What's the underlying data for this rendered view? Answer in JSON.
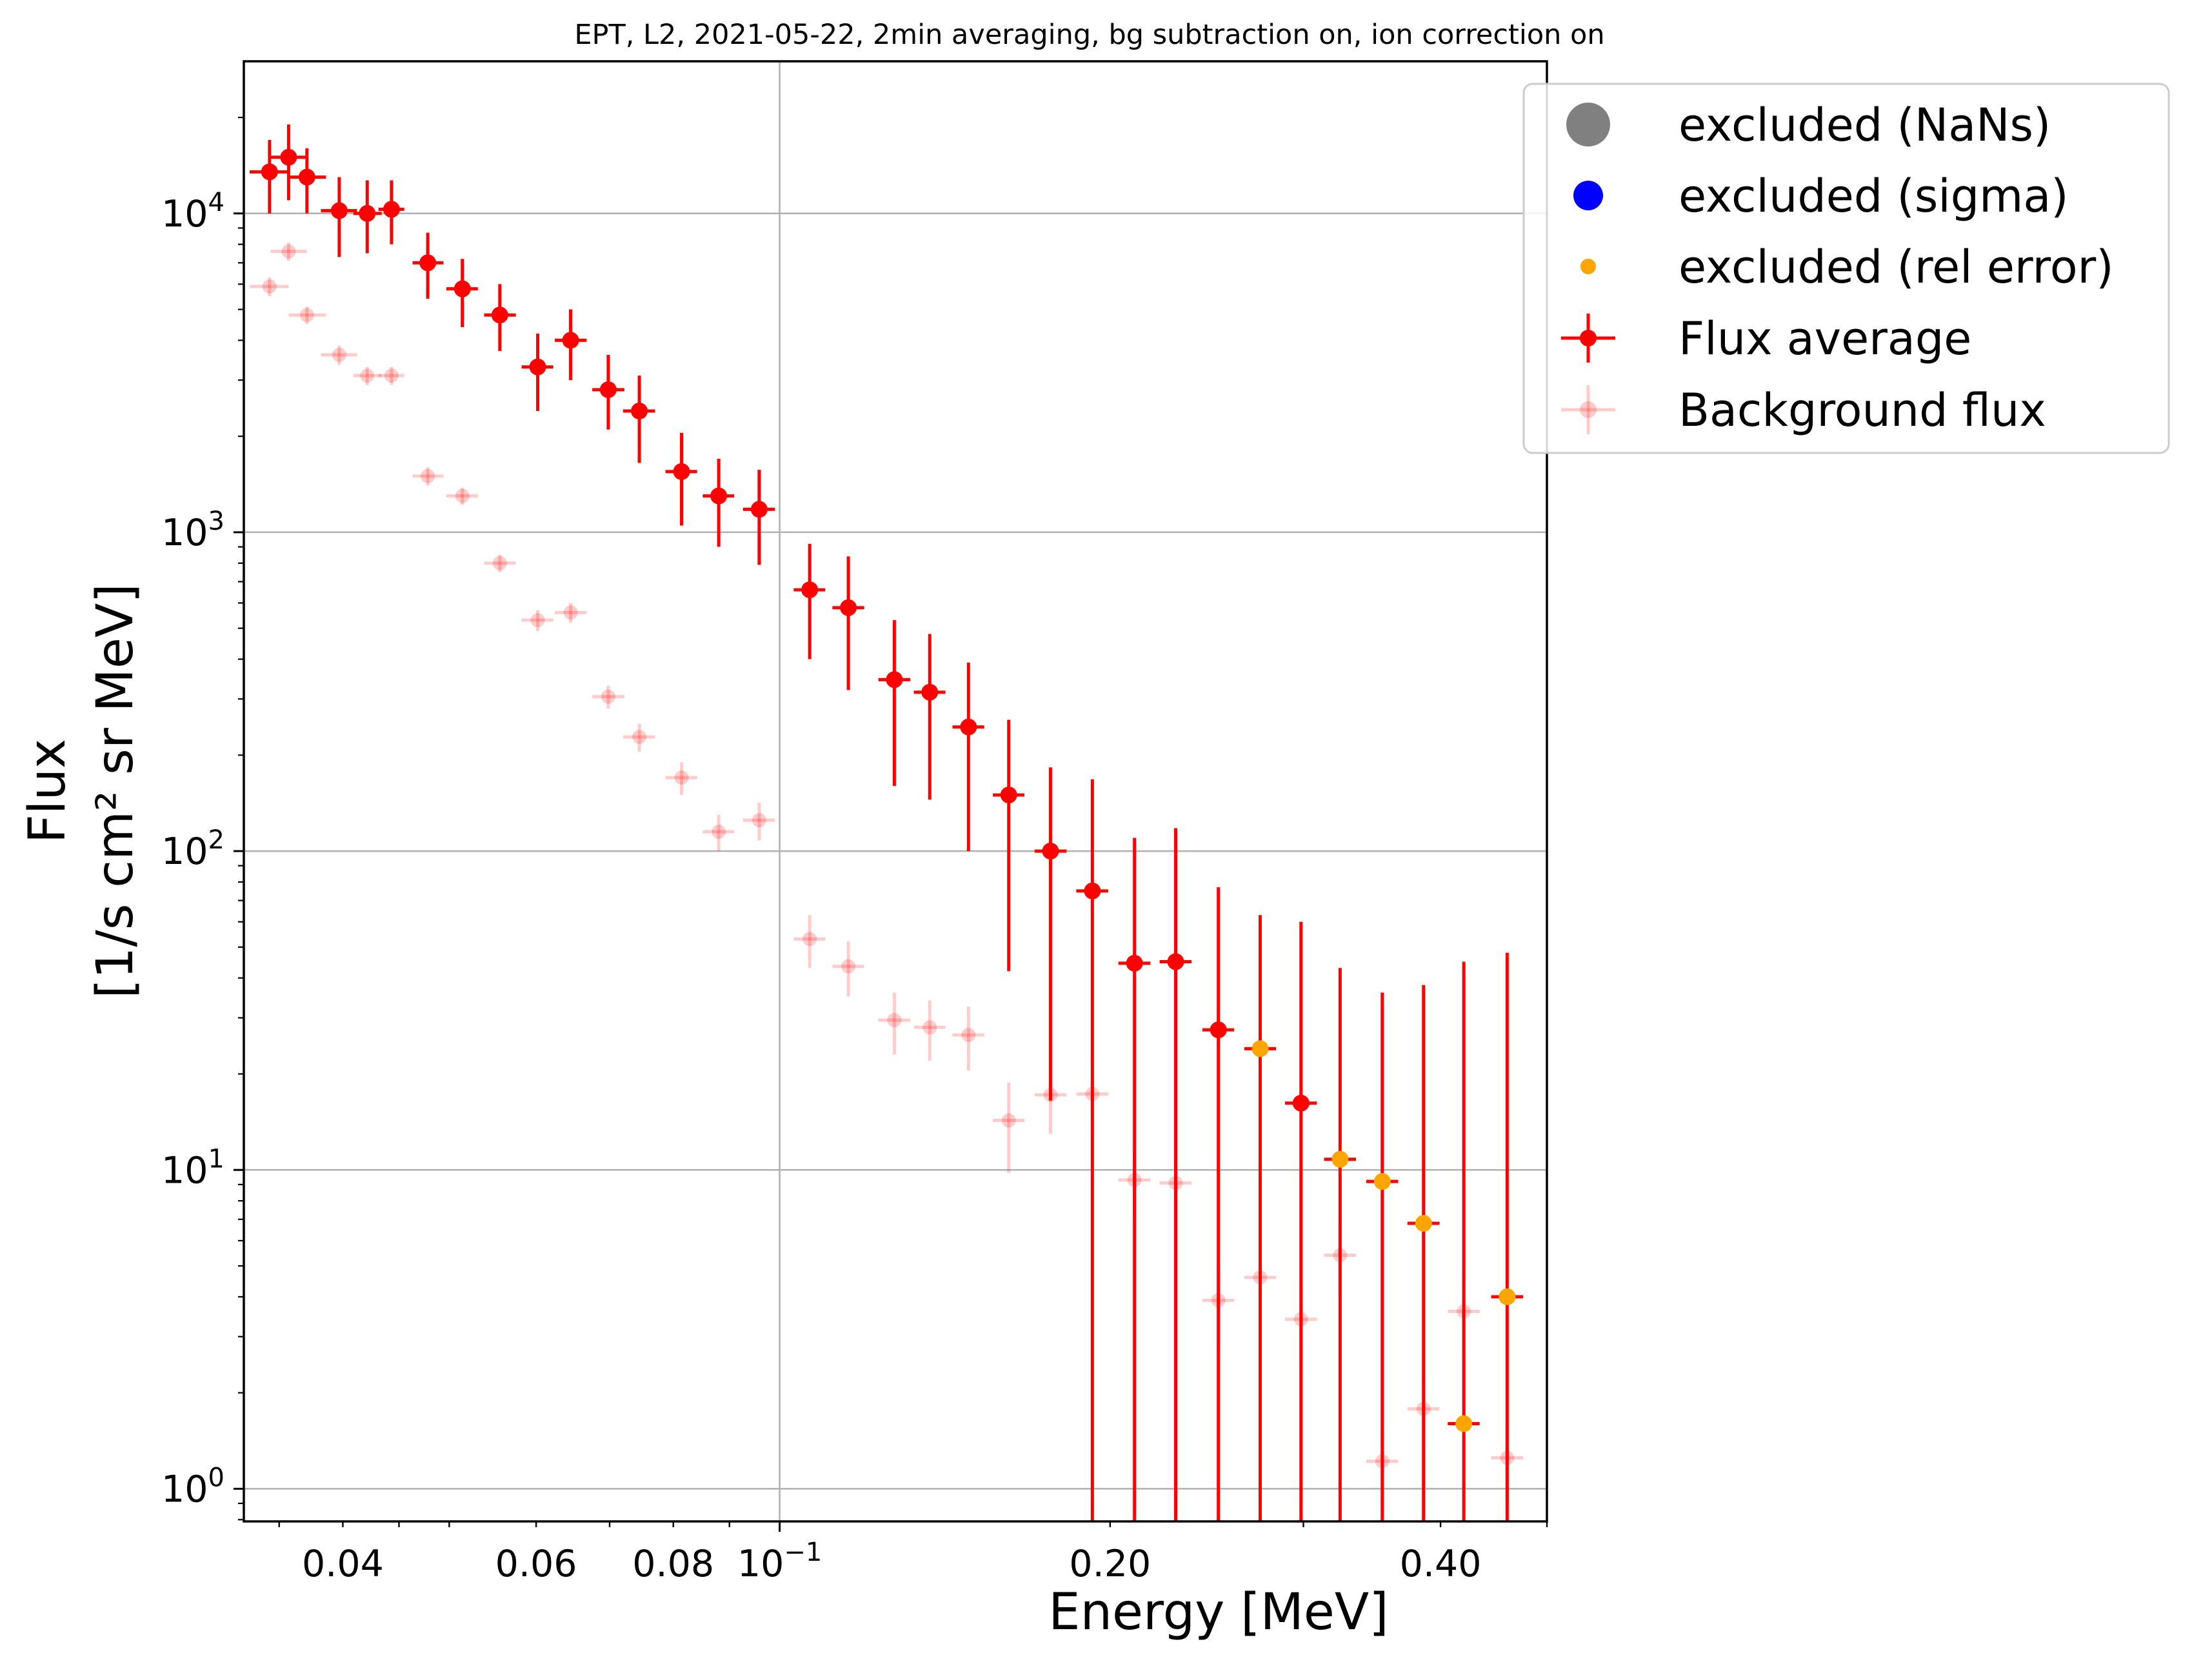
{
  "chart_data": {
    "type": "scatter",
    "title": "EPT, L2, 2021-05-22, 2min averaging, bg subtraction on, ion correction on",
    "xlabel": "Energy [MeV]",
    "ylabel_line1": "Flux",
    "ylabel_line2": "[1/s cm² sr MeV]",
    "xscale": "log",
    "yscale": "log",
    "xlim": [
      0.0325,
      0.5
    ],
    "ylim": [
      0.79,
      30000
    ],
    "grid": "major",
    "legend_position": "top-right",
    "x_tick_labels": [
      {
        "value": 0.04,
        "label": "0.04"
      },
      {
        "value": 0.06,
        "label": "0.06"
      },
      {
        "value": 0.08,
        "label": "0.08"
      },
      {
        "value": 0.1,
        "label": "10",
        "exponent": "−1"
      },
      {
        "value": 0.2,
        "label": "0.20"
      },
      {
        "value": 0.4,
        "label": "0.40"
      }
    ],
    "y_tick_labels": [
      {
        "value": 1,
        "label": "10",
        "exponent": "0"
      },
      {
        "value": 10,
        "label": "10",
        "exponent": "1"
      },
      {
        "value": 100,
        "label": "10",
        "exponent": "2"
      },
      {
        "value": 1000,
        "label": "10",
        "exponent": "3"
      },
      {
        "value": 10000,
        "label": "10",
        "exponent": "4"
      }
    ],
    "legend": [
      {
        "label": "excluded (NaNs)",
        "color": "#808080",
        "marker": "large-circle"
      },
      {
        "label": "excluded (sigma)",
        "color": "#0000ff",
        "marker": "circle"
      },
      {
        "label": "excluded (rel error)",
        "color": "#ffa500",
        "marker": "small-circle"
      },
      {
        "label": "Flux average",
        "color": "#ff0000",
        "marker": "errorbar"
      },
      {
        "label": "Background flux",
        "color": "#ff0000",
        "marker": "errorbar-faint"
      }
    ],
    "series": [
      {
        "name": "Flux average",
        "color": "#ff0000",
        "points": [
          {
            "x": 0.0343,
            "y": 13500,
            "xlo": 0.0329,
            "xhi": 0.0357,
            "ylo": 10000,
            "yhi": 17000
          },
          {
            "x": 0.0357,
            "y": 15000,
            "xlo": 0.0344,
            "xhi": 0.0371,
            "ylo": 11000,
            "yhi": 19000
          },
          {
            "x": 0.0371,
            "y": 13000,
            "xlo": 0.0357,
            "xhi": 0.0386,
            "ylo": 10000,
            "yhi": 16000
          },
          {
            "x": 0.0397,
            "y": 10200,
            "xlo": 0.0382,
            "xhi": 0.0412,
            "ylo": 7300,
            "yhi": 13000
          },
          {
            "x": 0.0421,
            "y": 10000,
            "xlo": 0.0409,
            "xhi": 0.0434,
            "ylo": 7500,
            "yhi": 12700
          },
          {
            "x": 0.0443,
            "y": 10300,
            "xlo": 0.0431,
            "xhi": 0.0455,
            "ylo": 8000,
            "yhi": 12700
          },
          {
            "x": 0.0478,
            "y": 7000,
            "xlo": 0.0463,
            "xhi": 0.0494,
            "ylo": 5400,
            "yhi": 8700
          },
          {
            "x": 0.0514,
            "y": 5800,
            "xlo": 0.0497,
            "xhi": 0.0531,
            "ylo": 4400,
            "yhi": 7200
          },
          {
            "x": 0.0556,
            "y": 4800,
            "xlo": 0.0538,
            "xhi": 0.0575,
            "ylo": 3700,
            "yhi": 6000
          },
          {
            "x": 0.0602,
            "y": 3300,
            "xlo": 0.0582,
            "xhi": 0.0622,
            "ylo": 2400,
            "yhi": 4200
          },
          {
            "x": 0.0645,
            "y": 4000,
            "xlo": 0.0624,
            "xhi": 0.0667,
            "ylo": 3000,
            "yhi": 5000
          },
          {
            "x": 0.0698,
            "y": 2800,
            "xlo": 0.0675,
            "xhi": 0.0722,
            "ylo": 2100,
            "yhi": 3600
          },
          {
            "x": 0.0745,
            "y": 2400,
            "xlo": 0.072,
            "xhi": 0.077,
            "ylo": 1650,
            "yhi": 3100
          },
          {
            "x": 0.0814,
            "y": 1550,
            "xlo": 0.0787,
            "xhi": 0.0841,
            "ylo": 1050,
            "yhi": 2050
          },
          {
            "x": 0.088,
            "y": 1300,
            "xlo": 0.0851,
            "xhi": 0.0909,
            "ylo": 900,
            "yhi": 1700
          },
          {
            "x": 0.0958,
            "y": 1180,
            "xlo": 0.0926,
            "xhi": 0.099,
            "ylo": 790,
            "yhi": 1570
          },
          {
            "x": 0.1065,
            "y": 660,
            "xlo": 0.103,
            "xhi": 0.11,
            "ylo": 400,
            "yhi": 920
          },
          {
            "x": 0.1155,
            "y": 580,
            "xlo": 0.1117,
            "xhi": 0.1194,
            "ylo": 320,
            "yhi": 840
          },
          {
            "x": 0.1272,
            "y": 345,
            "xlo": 0.123,
            "xhi": 0.1315,
            "ylo": 160,
            "yhi": 530
          },
          {
            "x": 0.137,
            "y": 315,
            "xlo": 0.1325,
            "xhi": 0.1416,
            "ylo": 145,
            "yhi": 480
          },
          {
            "x": 0.1486,
            "y": 245,
            "xlo": 0.1437,
            "xhi": 0.1536,
            "ylo": 100,
            "yhi": 390
          },
          {
            "x": 0.1617,
            "y": 150,
            "xlo": 0.1564,
            "xhi": 0.1671,
            "ylo": 42,
            "yhi": 258
          },
          {
            "x": 0.1765,
            "y": 100,
            "xlo": 0.1707,
            "xhi": 0.1825,
            "ylo": 16.5,
            "yhi": 183
          },
          {
            "x": 0.1927,
            "y": 75,
            "xlo": 0.1863,
            "xhi": 0.1992,
            "ylo": 0.79,
            "yhi": 168
          },
          {
            "x": 0.2105,
            "y": 44.5,
            "xlo": 0.2035,
            "xhi": 0.2176,
            "ylo": 0.79,
            "yhi": 110
          },
          {
            "x": 0.2295,
            "y": 45,
            "xlo": 0.2219,
            "xhi": 0.2372,
            "ylo": 0.79,
            "yhi": 118
          },
          {
            "x": 0.251,
            "y": 27.5,
            "xlo": 0.2427,
            "xhi": 0.2594,
            "ylo": 0.79,
            "yhi": 77
          },
          {
            "x": 0.2985,
            "y": 16.2,
            "xlo": 0.2886,
            "xhi": 0.3086,
            "ylo": 0.79,
            "yhi": 60
          }
        ]
      },
      {
        "name": "excluded (rel error)",
        "color": "#ffa500",
        "points": [
          {
            "x": 0.274,
            "y": 24,
            "xlo": 0.265,
            "xhi": 0.2833,
            "ylo": 0.79,
            "yhi": 63
          },
          {
            "x": 0.324,
            "y": 10.8,
            "xlo": 0.3133,
            "xhi": 0.335,
            "ylo": 0.79,
            "yhi": 43
          },
          {
            "x": 0.354,
            "y": 9.2,
            "xlo": 0.3423,
            "xhi": 0.366,
            "ylo": 0.79,
            "yhi": 36
          },
          {
            "x": 0.386,
            "y": 6.8,
            "xlo": 0.3732,
            "xhi": 0.3991,
            "ylo": 0.79,
            "yhi": 38
          },
          {
            "x": 0.42,
            "y": 1.6,
            "xlo": 0.4061,
            "xhi": 0.4342,
            "ylo": 0.79,
            "yhi": 45
          },
          {
            "x": 0.46,
            "y": 4.0,
            "xlo": 0.4448,
            "xhi": 0.4756,
            "ylo": 0.79,
            "yhi": 48
          }
        ]
      },
      {
        "name": "Background flux",
        "color": "#ff0000",
        "points": [
          {
            "x": 0.0343,
            "y": 5900,
            "xlo": 0.0329,
            "xhi": 0.0357,
            "ylo": 5500,
            "yhi": 6300
          },
          {
            "x": 0.0357,
            "y": 7600,
            "xlo": 0.0344,
            "xhi": 0.0371,
            "ylo": 7100,
            "yhi": 8100
          },
          {
            "x": 0.0371,
            "y": 4800,
            "xlo": 0.0357,
            "xhi": 0.0386,
            "ylo": 4500,
            "yhi": 5100
          },
          {
            "x": 0.0397,
            "y": 3600,
            "xlo": 0.0382,
            "xhi": 0.0412,
            "ylo": 3350,
            "yhi": 3850
          },
          {
            "x": 0.0421,
            "y": 3100,
            "xlo": 0.0409,
            "xhi": 0.0434,
            "ylo": 2900,
            "yhi": 3300
          },
          {
            "x": 0.0443,
            "y": 3100,
            "xlo": 0.0431,
            "xhi": 0.0455,
            "ylo": 2900,
            "yhi": 3300
          },
          {
            "x": 0.0478,
            "y": 1500,
            "xlo": 0.0463,
            "xhi": 0.0494,
            "ylo": 1400,
            "yhi": 1600
          },
          {
            "x": 0.0514,
            "y": 1300,
            "xlo": 0.0497,
            "xhi": 0.0531,
            "ylo": 1220,
            "yhi": 1380
          },
          {
            "x": 0.0556,
            "y": 800,
            "xlo": 0.0538,
            "xhi": 0.0575,
            "ylo": 750,
            "yhi": 850
          },
          {
            "x": 0.0602,
            "y": 530,
            "xlo": 0.0582,
            "xhi": 0.0622,
            "ylo": 490,
            "yhi": 570
          },
          {
            "x": 0.0645,
            "y": 560,
            "xlo": 0.0624,
            "xhi": 0.0667,
            "ylo": 520,
            "yhi": 600
          },
          {
            "x": 0.0698,
            "y": 305,
            "xlo": 0.0675,
            "xhi": 0.0722,
            "ylo": 280,
            "yhi": 330
          },
          {
            "x": 0.0745,
            "y": 228,
            "xlo": 0.072,
            "xhi": 0.077,
            "ylo": 205,
            "yhi": 251
          },
          {
            "x": 0.0814,
            "y": 170,
            "xlo": 0.0787,
            "xhi": 0.0841,
            "ylo": 150,
            "yhi": 190
          },
          {
            "x": 0.088,
            "y": 115,
            "xlo": 0.0851,
            "xhi": 0.0909,
            "ylo": 100,
            "yhi": 130
          },
          {
            "x": 0.0958,
            "y": 125,
            "xlo": 0.0926,
            "xhi": 0.099,
            "ylo": 108,
            "yhi": 142
          },
          {
            "x": 0.1065,
            "y": 53,
            "xlo": 0.103,
            "xhi": 0.11,
            "ylo": 43,
            "yhi": 63
          },
          {
            "x": 0.1155,
            "y": 43.5,
            "xlo": 0.1117,
            "xhi": 0.1194,
            "ylo": 35,
            "yhi": 52
          },
          {
            "x": 0.1272,
            "y": 29.5,
            "xlo": 0.123,
            "xhi": 0.1315,
            "ylo": 23,
            "yhi": 36
          },
          {
            "x": 0.137,
            "y": 28,
            "xlo": 0.1325,
            "xhi": 0.1416,
            "ylo": 22,
            "yhi": 34
          },
          {
            "x": 0.1486,
            "y": 26.5,
            "xlo": 0.1437,
            "xhi": 0.1536,
            "ylo": 20.5,
            "yhi": 32.5
          },
          {
            "x": 0.1617,
            "y": 14.3,
            "xlo": 0.1564,
            "xhi": 0.1671,
            "ylo": 9.8,
            "yhi": 18.8
          },
          {
            "x": 0.1765,
            "y": 17.2,
            "xlo": 0.1707,
            "xhi": 0.1825,
            "ylo": 13,
            "yhi": 21.4
          },
          {
            "x": 0.1927,
            "y": 17.3,
            "xlo": 0.1863,
            "xhi": 0.1992,
            "ylo": 13,
            "yhi": 21.6
          },
          {
            "x": 0.2105,
            "y": 9.3,
            "xlo": 0.2035,
            "xhi": 0.2176,
            "ylo": 7,
            "yhi": 11.6
          },
          {
            "x": 0.2295,
            "y": 9.1,
            "xlo": 0.2219,
            "xhi": 0.2372,
            "ylo": 6.8,
            "yhi": 11.4
          },
          {
            "x": 0.251,
            "y": 3.9,
            "xlo": 0.2427,
            "xhi": 0.2594,
            "ylo": 2.8,
            "yhi": 5.0
          },
          {
            "x": 0.274,
            "y": 4.6,
            "xlo": 0.265,
            "xhi": 0.2833,
            "ylo": 3.4,
            "yhi": 5.8
          },
          {
            "x": 0.2985,
            "y": 3.4,
            "xlo": 0.2886,
            "xhi": 0.3086,
            "ylo": 2.5,
            "yhi": 4.3
          },
          {
            "x": 0.324,
            "y": 5.4,
            "xlo": 0.3133,
            "xhi": 0.335,
            "ylo": 4.0,
            "yhi": 6.8
          },
          {
            "x": 0.354,
            "y": 1.22,
            "xlo": 0.3423,
            "xhi": 0.366,
            "ylo": 0.9,
            "yhi": 1.54
          },
          {
            "x": 0.386,
            "y": 1.78,
            "xlo": 0.3732,
            "xhi": 0.3991,
            "ylo": 1.3,
            "yhi": 2.26
          },
          {
            "x": 0.42,
            "y": 3.6,
            "xlo": 0.4061,
            "xhi": 0.4342,
            "ylo": 2.6,
            "yhi": 4.6
          },
          {
            "x": 0.46,
            "y": 1.25,
            "xlo": 0.4448,
            "xhi": 0.4756,
            "ylo": 0.92,
            "yhi": 1.58
          }
        ]
      }
    ]
  }
}
